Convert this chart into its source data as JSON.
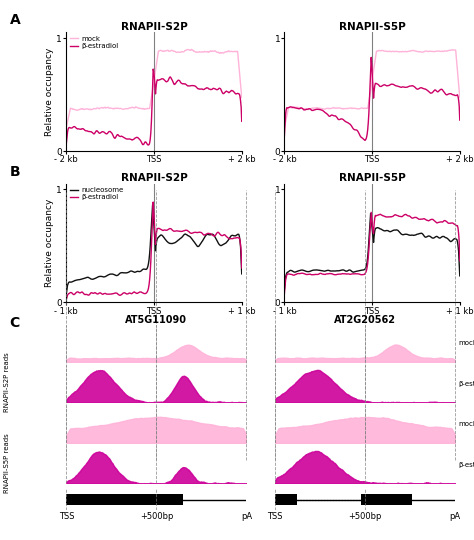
{
  "fig_width": 4.74,
  "fig_height": 5.4,
  "dpi": 100,
  "panel_A_left_title": "RNAPII-S2P",
  "panel_A_right_title": "RNAPII-S5P",
  "panel_B_left_title": "RNAPII-S2P",
  "panel_B_right_title": "RNAPII-S5P",
  "color_mock": "#FFB3D9",
  "color_beta": "#CC0066",
  "color_nucleosome": "#111111",
  "color_magenta_fill": "#CC0099",
  "panel_A_xlabel": [
    "- 2 kb",
    "TSS",
    "+ 2 kb"
  ],
  "panel_B_xlabel": [
    "- 1 kb",
    "TSS",
    "+ 1 kb"
  ],
  "panel_ylabel": "Relative occupancy",
  "legend_A_labels": [
    "mock",
    "β-estradiol"
  ],
  "legend_B_labels": [
    "nucleosome",
    "β-estradiol"
  ],
  "gene_left": "AT5G11090",
  "gene_right": "AT2G20562",
  "panel_C_xlabel": [
    "TSS",
    "+500bp",
    "pA"
  ],
  "bg_color": "#ffffff"
}
